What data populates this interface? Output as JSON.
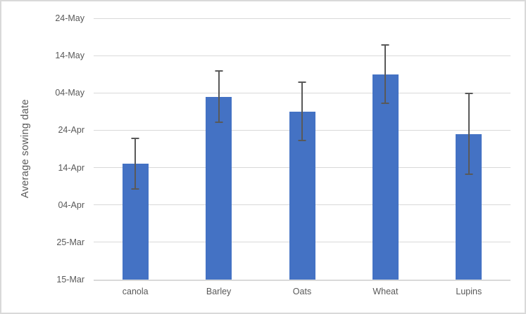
{
  "chart_data": {
    "type": "bar",
    "title": "",
    "xlabel": "",
    "ylabel": "Average sowing date",
    "categories": [
      "canola",
      "Barley",
      "Oats",
      "Wheat",
      "Lupins"
    ],
    "series": [
      {
        "name": "Average sowing date",
        "value_dates": [
          "15-Apr",
          "03-May",
          "29-Apr",
          "09-May",
          "23-Apr"
        ],
        "value_days_after_15_Mar": [
          31,
          49,
          45,
          55,
          39
        ],
        "error_low_dates": [
          "08-Apr",
          "26-Apr",
          "21-Apr",
          "01-May",
          "12-Apr"
        ],
        "error_high_dates": [
          "22-Apr",
          "10-May",
          "07-May",
          "17-May",
          "04-May"
        ],
        "error_low_days": [
          24,
          42,
          37,
          47,
          28
        ],
        "error_high_days": [
          38,
          56,
          53,
          63,
          50
        ]
      }
    ],
    "y_axis": {
      "tick_labels": [
        "15-Mar",
        "25-Mar",
        "04-Apr",
        "14-Apr",
        "24-Apr",
        "04-May",
        "14-May",
        "24-May"
      ],
      "tick_days": [
        0,
        10,
        20,
        30,
        40,
        50,
        60,
        70
      ],
      "lim_days": [
        0,
        70
      ],
      "baseline_date": "15-Mar",
      "max_date": "24-May"
    },
    "grid": true,
    "legend": false,
    "colors": {
      "bar_fill": "#4472c4",
      "error_bar": "#595959",
      "gridline": "#d9d9d9",
      "axis_text": "#595959",
      "chart_border": "#d9d9d9",
      "background": "#ffffff"
    }
  }
}
